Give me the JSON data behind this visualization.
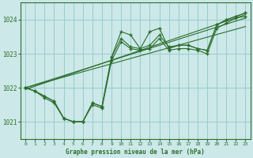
{
  "title": "Graphe pression niveau de la mer (hPa)",
  "background_color": "#cce8e8",
  "grid_color": "#99cccc",
  "line_color": "#2d6e2d",
  "xlim": [
    -0.5,
    23.5
  ],
  "ylim": [
    1020.5,
    1024.5
  ],
  "yticks": [
    1021,
    1022,
    1023,
    1024
  ],
  "xticks": [
    0,
    1,
    2,
    3,
    4,
    5,
    6,
    7,
    8,
    9,
    10,
    11,
    12,
    13,
    14,
    15,
    16,
    17,
    18,
    19,
    20,
    21,
    22,
    23
  ],
  "x": [
    0,
    1,
    2,
    3,
    4,
    5,
    6,
    7,
    8,
    9,
    10,
    11,
    12,
    13,
    14,
    15,
    16,
    17,
    18,
    19,
    20,
    21,
    22,
    23
  ],
  "line1": [
    1022.0,
    1021.9,
    1021.75,
    1021.6,
    1021.1,
    1021.0,
    1021.0,
    1021.55,
    1021.45,
    1022.9,
    1023.65,
    1023.55,
    1023.15,
    1023.65,
    1023.75,
    1023.15,
    1023.25,
    1023.25,
    1023.15,
    1023.1,
    1023.85,
    1024.0,
    1024.1,
    1024.2
  ],
  "line2": [
    1022.0,
    1021.9,
    1021.75,
    1021.6,
    1021.1,
    1021.0,
    1021.0,
    1021.55,
    1021.45,
    1022.9,
    1023.45,
    1023.2,
    1023.15,
    1023.25,
    1023.55,
    1023.2,
    1023.25,
    1023.25,
    1023.15,
    1023.1,
    1023.85,
    1024.0,
    1024.1,
    1024.2
  ],
  "line3": [
    1022.0,
    1021.9,
    1021.7,
    1021.55,
    1021.1,
    1021.0,
    1021.0,
    1021.5,
    1021.4,
    1022.8,
    1023.35,
    1023.15,
    1023.1,
    1023.15,
    1023.45,
    1023.1,
    1023.15,
    1023.15,
    1023.1,
    1023.0,
    1023.75,
    1023.9,
    1024.05,
    1024.1
  ],
  "trend1_x": [
    0,
    23
  ],
  "trend1_y": [
    1022.0,
    1023.8
  ],
  "trend2_x": [
    0,
    23
  ],
  "trend2_y": [
    1022.0,
    1024.05
  ],
  "trend3_x": [
    0,
    23
  ],
  "trend3_y": [
    1021.95,
    1024.15
  ]
}
